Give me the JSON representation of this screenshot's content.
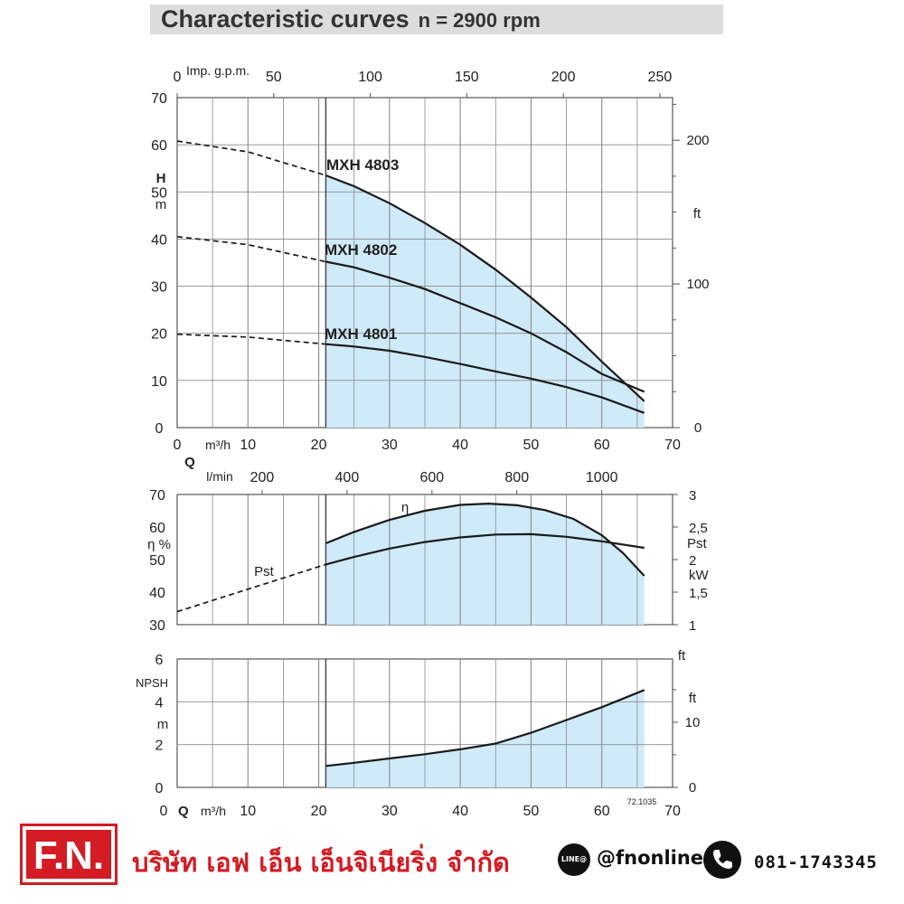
{
  "title": {
    "main": "Characteristic curves",
    "sub": "n = 2900 rpm"
  },
  "colors": {
    "fill": "#cfeaf8",
    "curve": "#1a1a1a",
    "grid": "#555555",
    "brand_red": "#d31c24"
  },
  "chart_data": [
    {
      "type": "line",
      "name_panel": "head",
      "x_label": "Q m³/h",
      "x_range": [
        0,
        70
      ],
      "x_ticks": [
        "0",
        "10",
        "20",
        "30",
        "40",
        "50",
        "60",
        "70"
      ],
      "top_axis": {
        "label": "Imp. g.p.m.",
        "range": [
          0,
          250
        ],
        "ticks": [
          "0",
          "50",
          "100",
          "150",
          "200",
          "250"
        ]
      },
      "y_label": [
        "H",
        "m"
      ],
      "y_range": [
        0,
        70
      ],
      "y_ticks": [
        "0",
        "10",
        "20",
        "30",
        "40",
        "50",
        "60",
        "70"
      ],
      "y2_label": "ft",
      "y2_ticks": [
        "0",
        "100",
        "200"
      ],
      "operating_range": [
        21,
        66
      ],
      "series": [
        {
          "name": "MXH 4803",
          "dashed": [
            [
              0,
              60.8
            ],
            [
              10,
              58.5
            ],
            [
              21,
              53.5
            ]
          ],
          "solid": [
            [
              21,
              53.5
            ],
            [
              25,
              51.2
            ],
            [
              30,
              47.6
            ],
            [
              35,
              43.4
            ],
            [
              40,
              38.8
            ],
            [
              45,
              33.5
            ],
            [
              50,
              27.6
            ],
            [
              55,
              21.3
            ],
            [
              60,
              14
            ],
            [
              66,
              5.6
            ]
          ]
        },
        {
          "name": "MXH 4802",
          "dashed": [
            [
              0,
              40.5
            ],
            [
              10,
              38.8
            ],
            [
              21,
              35.2
            ]
          ],
          "solid": [
            [
              21,
              35.2
            ],
            [
              25,
              34
            ],
            [
              30,
              31.8
            ],
            [
              35,
              29.4
            ],
            [
              40,
              26.4
            ],
            [
              45,
              23.4
            ],
            [
              50,
              20
            ],
            [
              55,
              16
            ],
            [
              60,
              11.4
            ],
            [
              66,
              7.6
            ]
          ]
        },
        {
          "name": "MXH 4801",
          "dashed": [
            [
              0,
              19.8
            ],
            [
              10,
              19.2
            ],
            [
              21,
              17.7
            ]
          ],
          "solid": [
            [
              21,
              17.7
            ],
            [
              25,
              17.2
            ],
            [
              30,
              16.3
            ],
            [
              35,
              15
            ],
            [
              40,
              13.5
            ],
            [
              45,
              11.9
            ],
            [
              50,
              10.4
            ],
            [
              55,
              8.6
            ],
            [
              60,
              6.4
            ],
            [
              66,
              3.1
            ]
          ]
        }
      ]
    },
    {
      "type": "line",
      "name_panel": "efficiency-power",
      "top_axis": {
        "label": "l/min",
        "ticks": [
          "Q",
          "200",
          "400",
          "600",
          "800",
          "1000"
        ]
      },
      "y_label": "η %",
      "y_range": [
        30,
        70
      ],
      "y_ticks": [
        "30",
        "40",
        "50",
        "60",
        "70"
      ],
      "y2_label": [
        "Pst",
        "kW"
      ],
      "y2_range": [
        1,
        3
      ],
      "y2_ticks": [
        "1",
        "1,5",
        "2",
        "2,5",
        "3"
      ],
      "operating_range": [
        21,
        66
      ],
      "series": [
        {
          "name": "η",
          "solid": [
            [
              21,
              55
            ],
            [
              25,
              58.5
            ],
            [
              30,
              62.2
            ],
            [
              35,
              65
            ],
            [
              40,
              66.8
            ],
            [
              44,
              67.2
            ],
            [
              48,
              66.7
            ],
            [
              52,
              65.2
            ],
            [
              56,
              62.5
            ],
            [
              60,
              57.5
            ],
            [
              63,
              52
            ],
            [
              66,
              45
            ]
          ]
        },
        {
          "name": "Pst",
          "dashed": [
            [
              0,
              34
            ],
            [
              21,
              48.5
            ]
          ],
          "solid": [
            [
              21,
              48.5
            ],
            [
              25,
              50.8
            ],
            [
              30,
              53.4
            ],
            [
              35,
              55.4
            ],
            [
              40,
              56.8
            ],
            [
              45,
              57.7
            ],
            [
              50,
              57.8
            ],
            [
              55,
              57
            ],
            [
              60,
              55.6
            ],
            [
              66,
              53.6
            ]
          ]
        }
      ]
    },
    {
      "type": "area",
      "name_panel": "npsh",
      "x_label": "Q m³/h",
      "x_ticks": [
        "0",
        "10",
        "20",
        "30",
        "40",
        "50",
        "60",
        "70"
      ],
      "y_label": [
        "NPSH",
        "m"
      ],
      "y_range": [
        0,
        6
      ],
      "y_ticks": [
        "0",
        "2",
        "4",
        "6"
      ],
      "y2_label": [
        "ft",
        "ft"
      ],
      "y2_ticks": [
        "0",
        "10"
      ],
      "operating_range": [
        21,
        66
      ],
      "code": "72.1035",
      "series": [
        {
          "name": "NPSH",
          "solid": [
            [
              21,
              1.0
            ],
            [
              25,
              1.15
            ],
            [
              30,
              1.35
            ],
            [
              35,
              1.55
            ],
            [
              40,
              1.78
            ],
            [
              45,
              2.05
            ],
            [
              50,
              2.55
            ],
            [
              55,
              3.15
            ],
            [
              60,
              3.75
            ],
            [
              66,
              4.55
            ]
          ]
        }
      ]
    }
  ],
  "footer": {
    "logo_text": "F.N.",
    "company": "บริษัท เอฟ เอ็น เอ็นจิเนียริ่ง จำกัด",
    "line_badge": "LINE@",
    "line_handle": "@fnonline",
    "phone": "081-1743345"
  }
}
